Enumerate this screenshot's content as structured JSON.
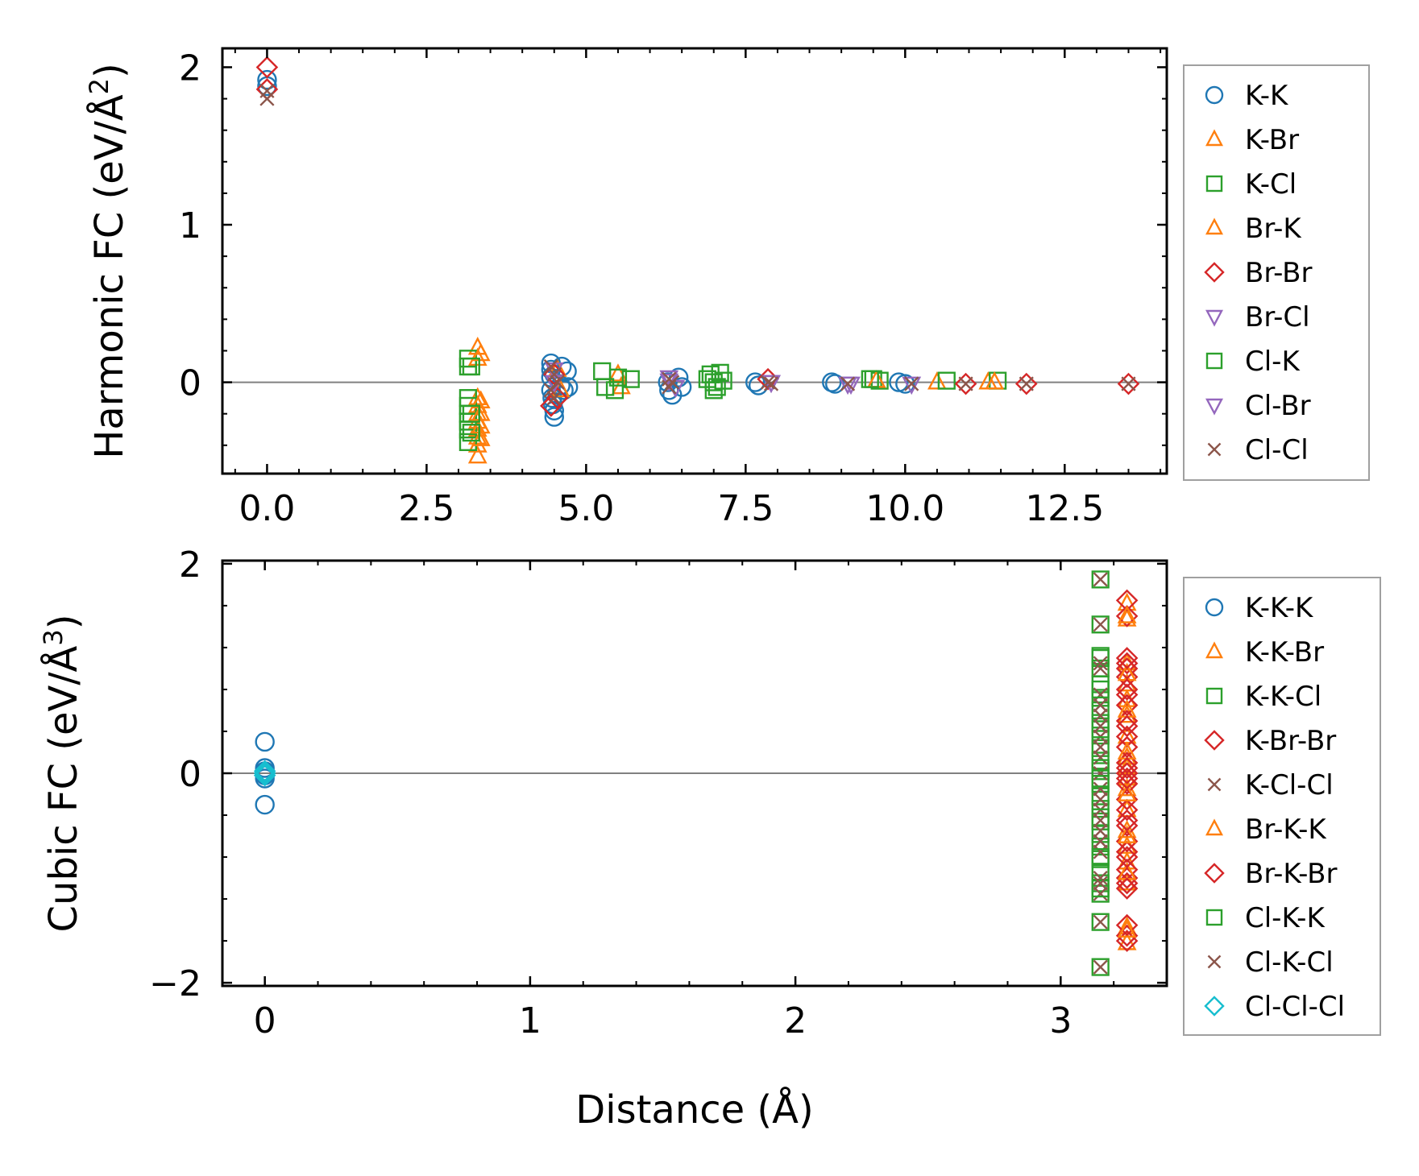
{
  "chart_data": [
    {
      "type": "scatter",
      "ylabel_main": "Harmonic FC (eV/Å",
      "ylabel_sup": "2",
      "ylabel_close": ")",
      "xlabel": "",
      "xlim": [
        -0.7,
        14.1
      ],
      "ylim": [
        -0.58,
        2.12
      ],
      "xticks": [
        "0.0",
        "2.5",
        "5.0",
        "7.5",
        "10.0",
        "12.5"
      ],
      "xtick_values": [
        0,
        2.5,
        5,
        7.5,
        10,
        12.5
      ],
      "yticks": [
        "0",
        "1",
        "2"
      ],
      "ytick_values": [
        0,
        1,
        2
      ],
      "zero_line": true,
      "series": [
        {
          "name": "K-K",
          "marker": "circle",
          "color": "#1f77b4",
          "x": [
            0,
            0,
            4.45,
            4.45,
            4.45,
            4.45,
            4.47,
            4.48,
            4.5,
            4.5,
            4.5,
            4.55,
            4.6,
            4.62,
            4.65,
            4.7,
            4.72,
            6.28,
            6.3,
            6.35,
            6.45,
            6.5,
            7.65,
            7.7,
            8.85,
            8.9,
            9.9,
            10.0
          ],
          "y": [
            1.92,
            1.88,
            0.12,
            0.08,
            0.03,
            -0.05,
            -0.1,
            -0.14,
            -0.18,
            -0.22,
            0.05,
            -0.08,
            -0.02,
            0.1,
            -0.05,
            0.07,
            -0.03,
            0.0,
            -0.05,
            -0.08,
            0.03,
            -0.03,
            0.0,
            -0.02,
            0.0,
            -0.01,
            0.0,
            -0.01
          ]
        },
        {
          "name": "K-Br",
          "marker": "triangle-up",
          "color": "#ff7f0e",
          "x": [
            3.3,
            3.3,
            3.3,
            3.3,
            3.3,
            3.3,
            3.3,
            3.3,
            3.3,
            3.3,
            4.55,
            4.6,
            5.5,
            5.55,
            10.5,
            11.3
          ],
          "y": [
            0.22,
            0.15,
            -0.1,
            -0.15,
            -0.2,
            -0.25,
            -0.3,
            -0.35,
            -0.4,
            -0.47,
            0.08,
            -0.05,
            0.05,
            -0.03,
            0.0,
            0.0
          ]
        },
        {
          "name": "K-Cl",
          "marker": "square",
          "color": "#2ca02c",
          "x": [
            3.15,
            3.15,
            3.15,
            3.15,
            3.15,
            3.15,
            3.15,
            3.15,
            5.25,
            5.3,
            5.5,
            5.7,
            6.95,
            7.0,
            7.05,
            7.1,
            7.15,
            9.5,
            9.6,
            10.65,
            11.45
          ],
          "y": [
            0.15,
            0.1,
            -0.1,
            -0.15,
            -0.2,
            -0.25,
            -0.3,
            -0.38,
            0.07,
            -0.03,
            0.03,
            0.02,
            0.05,
            0.0,
            -0.03,
            0.06,
            0.01,
            0.02,
            0.01,
            0.01,
            0.01
          ]
        },
        {
          "name": "Br-K",
          "marker": "triangle-up",
          "color": "#ff7f0e",
          "x": [
            3.35,
            3.35,
            3.35,
            3.35,
            3.35,
            9.55,
            11.4
          ],
          "y": [
            0.18,
            -0.12,
            -0.2,
            -0.28,
            -0.36,
            0.01,
            0.0
          ]
        },
        {
          "name": "Br-Br",
          "marker": "diamond",
          "color": "#d62728",
          "x": [
            0,
            0,
            4.45,
            4.5,
            4.55,
            7.85,
            10.95,
            11.9,
            13.5
          ],
          "y": [
            2.0,
            1.86,
            -0.15,
            0.05,
            -0.1,
            0.02,
            -0.01,
            -0.01,
            -0.01
          ]
        },
        {
          "name": "Br-Cl",
          "marker": "triangle-down",
          "color": "#9467bd",
          "x": [
            4.5,
            6.3,
            6.4,
            7.9,
            9.1,
            10.1
          ],
          "y": [
            0.08,
            0.03,
            -0.03,
            0.0,
            -0.01,
            -0.01
          ]
        },
        {
          "name": "Cl-K",
          "marker": "square",
          "color": "#2ca02c",
          "x": [
            3.2,
            3.2,
            3.2,
            5.45,
            6.9,
            7.0,
            9.45
          ],
          "y": [
            0.1,
            -0.2,
            -0.32,
            -0.05,
            0.02,
            -0.05,
            0.02
          ]
        },
        {
          "name": "Cl-Br",
          "marker": "triangle-down",
          "color": "#9467bd",
          "x": [
            4.5,
            6.3,
            7.9,
            9.15
          ],
          "y": [
            0.0,
            0.01,
            0.0,
            -0.01
          ]
        },
        {
          "name": "Cl-Cl",
          "marker": "x",
          "color": "#8c564b",
          "x": [
            0,
            0,
            4.45,
            4.45,
            4.5,
            4.5,
            4.55,
            6.3,
            6.3,
            6.35,
            7.85,
            7.9,
            9.1,
            10.1,
            10.95,
            11.9,
            13.5
          ],
          "y": [
            1.8,
            1.85,
            0.1,
            -0.05,
            0.05,
            -0.1,
            0.0,
            0.02,
            -0.03,
            0.0,
            0.0,
            -0.01,
            -0.01,
            -0.01,
            -0.01,
            -0.01,
            -0.01
          ]
        }
      ]
    },
    {
      "type": "scatter",
      "ylabel_main": "Cubic FC (eV/Å",
      "ylabel_sup": "3",
      "ylabel_close": ")",
      "xlabel": "Distance (Å)",
      "xlim": [
        -0.16,
        3.4
      ],
      "ylim": [
        -2.03,
        2.03
      ],
      "xticks": [
        "0",
        "1",
        "2",
        "3"
      ],
      "xtick_values": [
        0,
        1,
        2,
        3
      ],
      "yticks": [
        "2",
        "0",
        "−2"
      ],
      "ytick_values": [
        2,
        0,
        -2
      ],
      "zero_line": true,
      "series": [
        {
          "name": "K-K-K",
          "marker": "circle",
          "color": "#1f77b4",
          "x": [
            0,
            0,
            0,
            0,
            0,
            0,
            0
          ],
          "y": [
            0.3,
            0.05,
            0.02,
            0.0,
            -0.02,
            -0.05,
            -0.3
          ]
        },
        {
          "name": "K-K-Br",
          "marker": "triangle-up",
          "color": "#ff7f0e",
          "x": [
            3.25,
            3.25,
            3.25,
            3.25,
            3.25,
            3.25,
            3.25,
            3.25,
            3.25,
            3.25,
            3.25,
            3.25,
            3.25,
            3.25,
            3.25,
            3.25,
            3.25,
            3.25
          ],
          "y": [
            1.62,
            1.47,
            1.05,
            0.85,
            0.7,
            0.55,
            0.35,
            0.15,
            0.05,
            -0.05,
            -0.15,
            -0.35,
            -0.55,
            -0.7,
            -0.85,
            -1.05,
            -1.47,
            -1.62
          ]
        },
        {
          "name": "K-K-Cl",
          "marker": "square",
          "color": "#2ca02c",
          "x": [
            3.15,
            3.15,
            3.15,
            3.15,
            3.15,
            3.15,
            3.15,
            3.15,
            3.15,
            3.15,
            3.15,
            3.15,
            3.15,
            3.15,
            3.15,
            3.15,
            3.15,
            3.15,
            3.15,
            3.15,
            3.15,
            3.15,
            3.15,
            3.15
          ],
          "y": [
            1.85,
            1.42,
            1.12,
            1.0,
            0.85,
            0.72,
            0.6,
            0.48,
            0.36,
            0.24,
            0.12,
            0.02,
            -0.1,
            -0.22,
            -0.34,
            -0.46,
            -0.58,
            -0.7,
            -0.82,
            -0.94,
            -1.05,
            -1.15,
            -1.42,
            -1.85
          ]
        },
        {
          "name": "K-Br-Br",
          "marker": "diamond",
          "color": "#d62728",
          "x": [
            3.25,
            3.25,
            3.25,
            3.25,
            3.25,
            3.25,
            3.25,
            3.25,
            3.25,
            3.25,
            3.25,
            3.25,
            3.25,
            3.25,
            3.25,
            3.25,
            3.25,
            3.25,
            3.25,
            3.25,
            3.25,
            3.25,
            3.25,
            3.25
          ],
          "y": [
            1.65,
            1.5,
            1.05,
            1.0,
            0.92,
            0.75,
            0.65,
            0.5,
            0.35,
            0.25,
            0.1,
            0.0,
            -0.1,
            -0.25,
            -0.35,
            -0.5,
            -0.65,
            -0.75,
            -0.92,
            -1.0,
            -1.05,
            -1.45,
            -1.55,
            -1.6
          ]
        },
        {
          "name": "K-Cl-Cl",
          "marker": "x",
          "color": "#8c564b",
          "x": [
            3.15,
            3.15,
            3.15,
            3.15,
            3.15,
            3.15,
            3.15,
            3.15,
            3.15,
            3.15,
            3.15,
            3.15,
            3.15,
            3.15,
            3.15,
            3.15
          ],
          "y": [
            1.85,
            1.42,
            1.0,
            0.75,
            0.55,
            0.35,
            0.15,
            0.0,
            -0.15,
            -0.35,
            -0.55,
            -0.75,
            -1.0,
            -1.15,
            -1.42,
            -1.85
          ]
        },
        {
          "name": "Br-K-K",
          "marker": "triangle-up",
          "color": "#ff7f0e",
          "x": [
            3.25,
            3.25,
            3.25,
            3.25,
            3.25,
            3.25,
            3.25,
            3.25
          ],
          "y": [
            1.5,
            0.95,
            0.6,
            0.2,
            -0.2,
            -0.6,
            -0.95,
            -1.5
          ]
        },
        {
          "name": "Br-K-Br",
          "marker": "diamond",
          "color": "#d62728",
          "x": [
            3.25,
            3.25,
            3.25,
            3.25,
            3.25,
            3.25,
            3.25,
            3.25
          ],
          "y": [
            1.1,
            0.8,
            0.45,
            0.05,
            -0.05,
            -0.45,
            -0.8,
            -1.1
          ]
        },
        {
          "name": "Cl-K-K",
          "marker": "square",
          "color": "#2ca02c",
          "x": [
            3.15,
            3.15,
            3.15,
            3.15,
            3.15,
            3.15,
            3.15,
            3.15
          ],
          "y": [
            1.1,
            0.8,
            0.42,
            0.05,
            -0.05,
            -0.42,
            -0.8,
            -1.1
          ]
        },
        {
          "name": "Cl-K-Cl",
          "marker": "x",
          "color": "#8c564b",
          "x": [
            3.15,
            3.15,
            3.15,
            3.15,
            3.15,
            3.15,
            3.15,
            3.15
          ],
          "y": [
            1.05,
            0.65,
            0.45,
            0.25,
            -0.25,
            -0.45,
            -0.65,
            -1.05
          ]
        },
        {
          "name": "Cl-Cl-Cl",
          "marker": "diamond",
          "color": "#17becf",
          "x": [
            0,
            0,
            0
          ],
          "y": [
            0.02,
            0.0,
            -0.02
          ]
        }
      ]
    }
  ]
}
